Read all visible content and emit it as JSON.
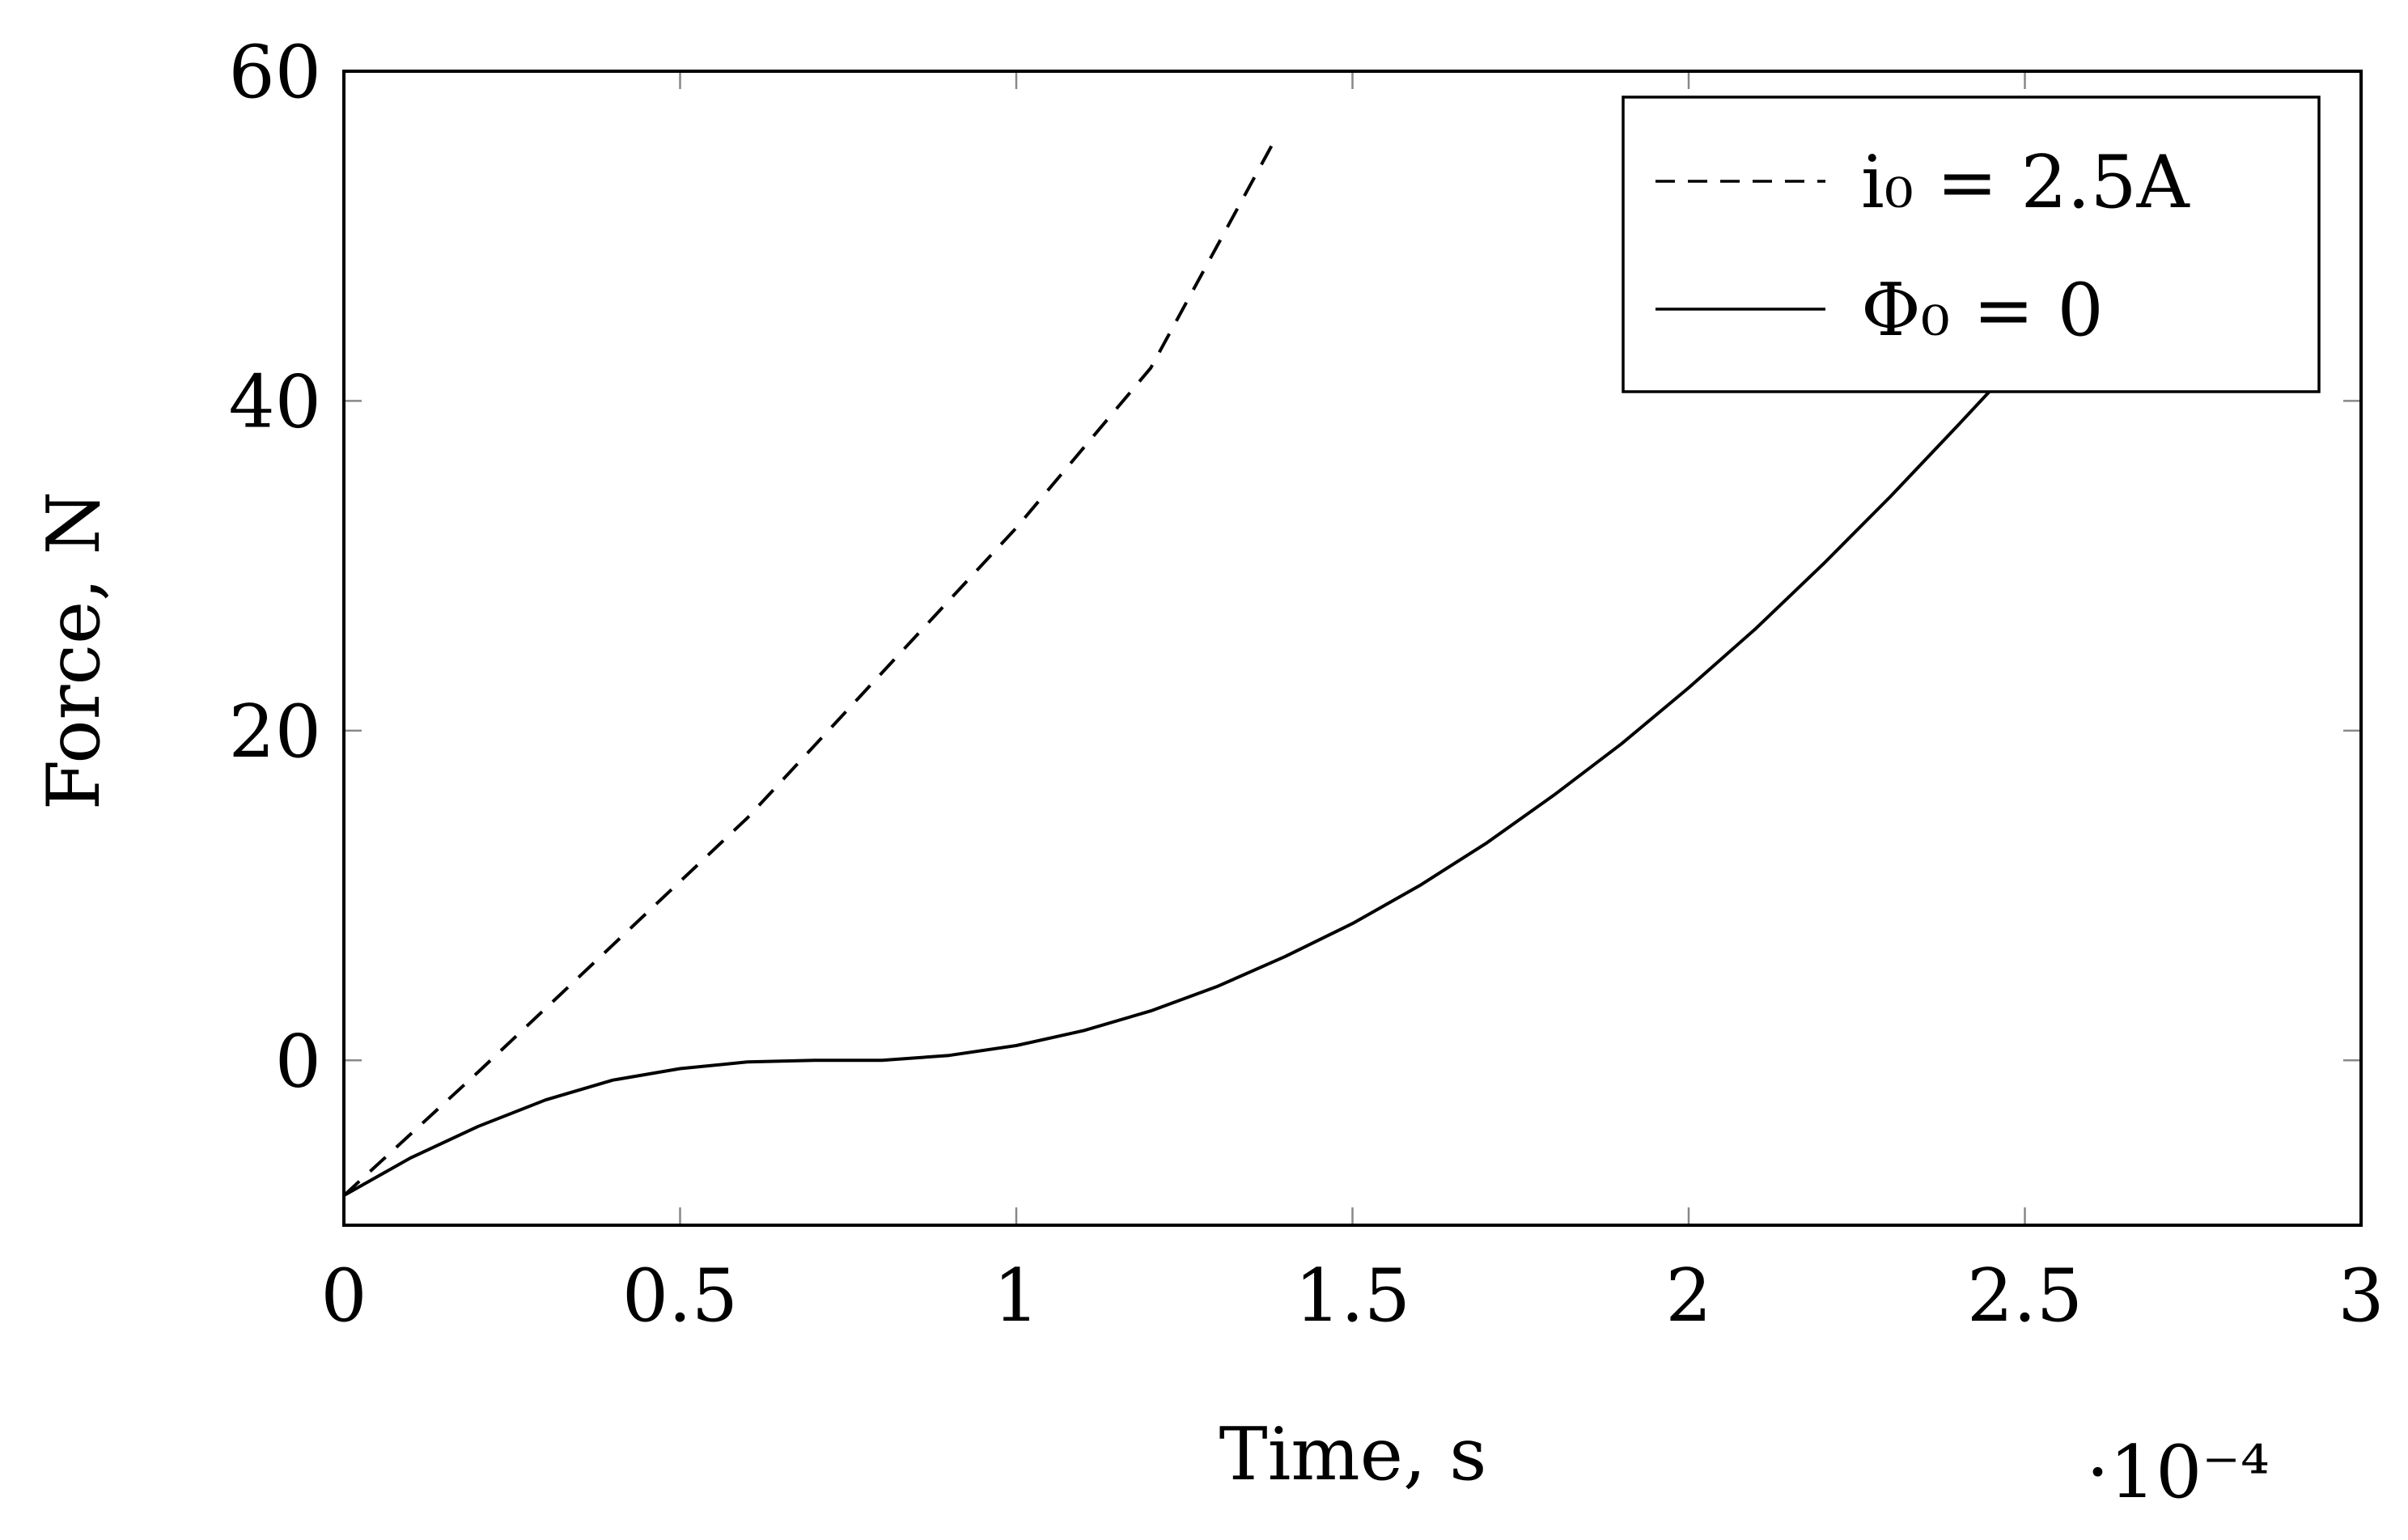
{
  "chart_data": {
    "type": "line",
    "xlabel": "Time, s",
    "ylabel": "Force, N",
    "x_multiplier": "·10⁻⁴",
    "xlim": [
      0,
      3
    ],
    "ylim": [
      -10,
      60
    ],
    "x_ticks": [
      {
        "value": 0,
        "label": "0"
      },
      {
        "value": 0.5,
        "label": "0.5"
      },
      {
        "value": 1,
        "label": "1"
      },
      {
        "value": 1.5,
        "label": "1.5"
      },
      {
        "value": 2,
        "label": "2"
      },
      {
        "value": 2.5,
        "label": "2.5"
      },
      {
        "value": 3,
        "label": "3"
      }
    ],
    "y_ticks": [
      {
        "value": 0,
        "label": "0"
      },
      {
        "value": 20,
        "label": "20"
      },
      {
        "value": 40,
        "label": "40"
      },
      {
        "value": 60,
        "label": "60"
      }
    ],
    "grid": false,
    "legend_position": "top-right",
    "series": [
      {
        "name": "i₀ = 2.5A",
        "style": "dashed",
        "color": "#000000",
        "x": [
          0,
          0.2,
          0.4,
          0.6,
          0.8,
          1.0,
          1.2,
          1.38
        ],
        "y": [
          -8.2,
          -0.7,
          7.0,
          14.7,
          23.5,
          32.3,
          42.0,
          55.5
        ]
      },
      {
        "name": "Φ₀ = 0",
        "style": "solid",
        "color": "#000000",
        "x": [
          0,
          0.1,
          0.2,
          0.3,
          0.4,
          0.5,
          0.6,
          0.7,
          0.8,
          0.9,
          1.0,
          1.1,
          1.2,
          1.3,
          1.4,
          1.5,
          1.6,
          1.7,
          1.8,
          1.9,
          2.0,
          2.1,
          2.2,
          2.3,
          2.4,
          2.48
        ],
        "y": [
          -8.2,
          -5.9,
          -4.0,
          -2.4,
          -1.2,
          -0.5,
          -0.1,
          0.0,
          0.0,
          0.3,
          0.9,
          1.8,
          3.0,
          4.5,
          6.3,
          8.3,
          10.6,
          13.2,
          16.1,
          19.2,
          22.6,
          26.2,
          30.1,
          34.2,
          38.5,
          42.0
        ]
      }
    ]
  }
}
